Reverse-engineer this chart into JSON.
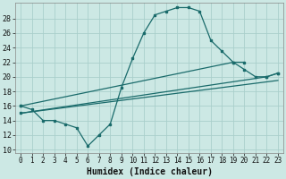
{
  "title": "",
  "xlabel": "Humidex (Indice chaleur)",
  "bg_color": "#cce8e4",
  "grid_color": "#aacfcb",
  "line_color": "#1a6b6b",
  "xlim": [
    -0.5,
    23.5
  ],
  "ylim": [
    9.5,
    30.2
  ],
  "xticks": [
    0,
    1,
    2,
    3,
    4,
    5,
    6,
    7,
    8,
    9,
    10,
    11,
    12,
    13,
    14,
    15,
    16,
    17,
    18,
    19,
    20,
    21,
    22,
    23
  ],
  "yticks": [
    10,
    12,
    14,
    16,
    18,
    20,
    22,
    24,
    26,
    28
  ],
  "line1_x": [
    0,
    1,
    2,
    3,
    4,
    5,
    6,
    7,
    8,
    9,
    10,
    11,
    12,
    13,
    14,
    15,
    16,
    17,
    18,
    19,
    20,
    21,
    22,
    23
  ],
  "line1_y": [
    16,
    15.5,
    14,
    14,
    13.5,
    13,
    10.5,
    12,
    13.5,
    18.5,
    22.5,
    26,
    28.5,
    29,
    29.5,
    29.5,
    29,
    25,
    23.5,
    22,
    21,
    20,
    20,
    20.5
  ],
  "line2_x": [
    0,
    19,
    20
  ],
  "line2_y": [
    16,
    22,
    22
  ],
  "line3_x": [
    0,
    22,
    23
  ],
  "line3_y": [
    15,
    20,
    20.5
  ],
  "line4_x": [
    0,
    23
  ],
  "line4_y": [
    15,
    19.5
  ]
}
